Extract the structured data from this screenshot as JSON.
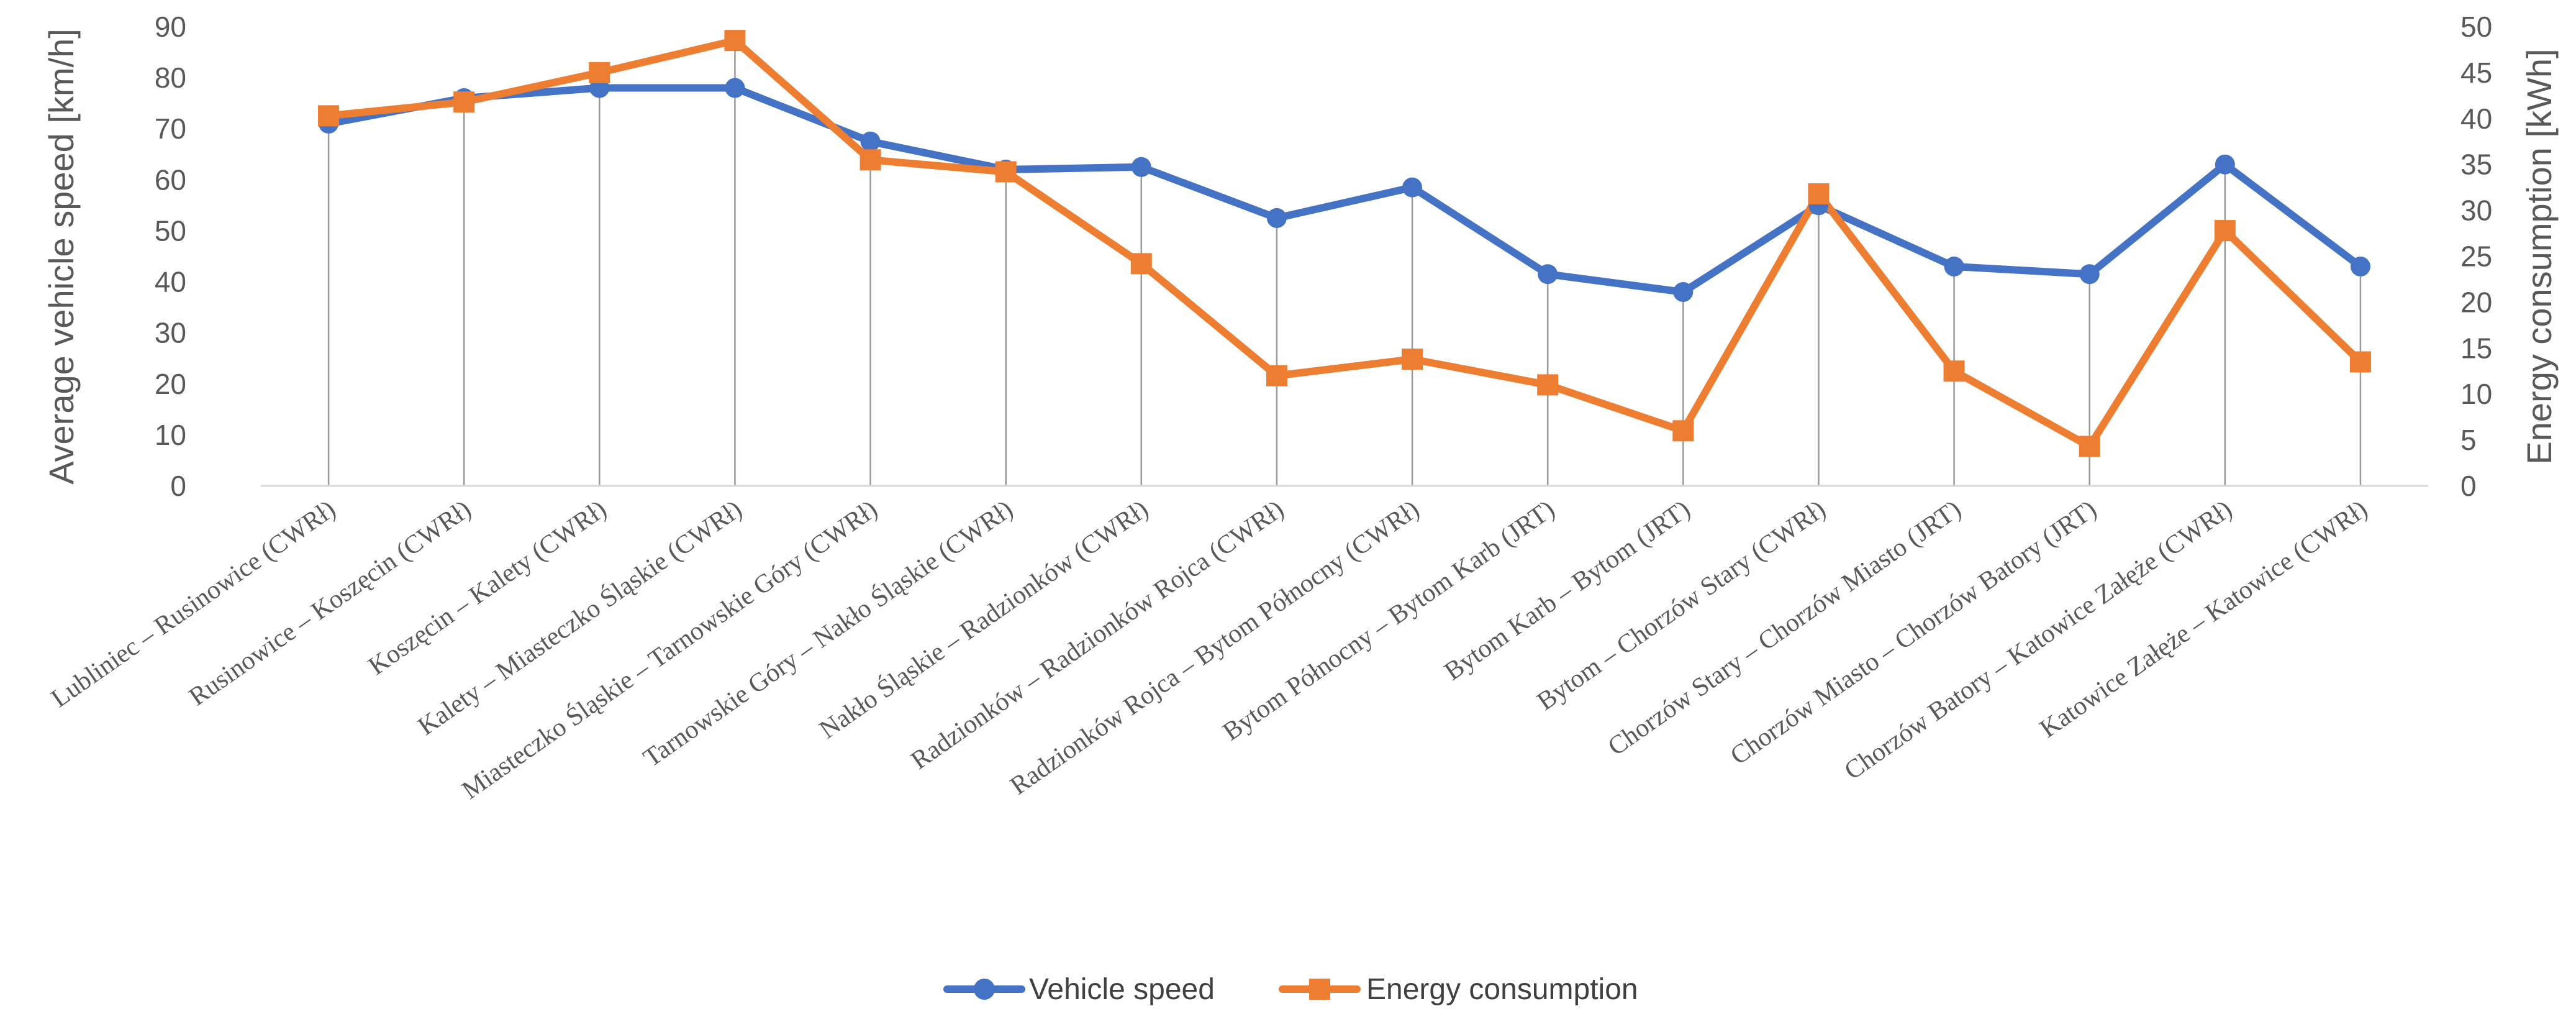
{
  "chart_data": {
    "type": "line",
    "title": "",
    "categories": [
      "Lubliniec – Rusinowice (CWRł)",
      "Rusinowice – Koszęcin (CWRł)",
      "Koszęcin – Kalety (CWRł)",
      "Kalety – Miasteczko Śląskie (CWRł)",
      "Miasteczko Śląskie – Tarnowskie Góry (CWRł)",
      "Tarnowskie Góry – Nakło Śląskie (CWRł)",
      "Nakło Śląskie – Radzionków (CWRł)",
      "Radzionków – Radzionków Rojca (CWRł)",
      "Radzionków Rojca – Bytom Północny (CWRł)",
      "Bytom Północny – Bytom Karb (JRT)",
      "Bytom Karb – Bytom (JRT)",
      "Bytom – Chorzów Stary (CWRł)",
      "Chorzów Stary – Chorzów Miasto (JRT)",
      "Chorzów Miasto – Chorzów Batory (JRT)",
      "Chorzów Batory – Katowice Załęże (CWRł)",
      "Katowice Załęże – Katowice (CWRł)"
    ],
    "series": [
      {
        "name": "Vehicle speed",
        "axis": "left",
        "color": "#4472C4",
        "marker": "circle",
        "values": [
          71,
          76,
          78,
          78,
          67.5,
          62,
          62.5,
          52.5,
          58.5,
          41.5,
          38,
          55,
          43,
          41.5,
          63,
          43
        ]
      },
      {
        "name": "Energy consumption",
        "axis": "right",
        "color": "#ED7D31",
        "marker": "square",
        "values": [
          40.3,
          41.8,
          45,
          48.5,
          35.5,
          34.2,
          24.2,
          12,
          13.8,
          11,
          6,
          31.8,
          12.5,
          4.3,
          27.8,
          13.5
        ]
      }
    ],
    "y_left": {
      "label": "Average vehicle speed [km/h]",
      "ylim": [
        0,
        90
      ],
      "ticks": [
        "0",
        "10",
        "20",
        "30",
        "40",
        "50",
        "60",
        "70",
        "80",
        "90"
      ]
    },
    "y_right": {
      "label": "Energy consumption [kWh]",
      "ylim": [
        0,
        50
      ],
      "ticks": [
        "0",
        "5",
        "10",
        "15",
        "20",
        "25",
        "30",
        "35",
        "40",
        "45",
        "50"
      ]
    },
    "xlabel": "",
    "legend": {
      "position": "bottom"
    },
    "grid": false,
    "drop_lines": true
  }
}
